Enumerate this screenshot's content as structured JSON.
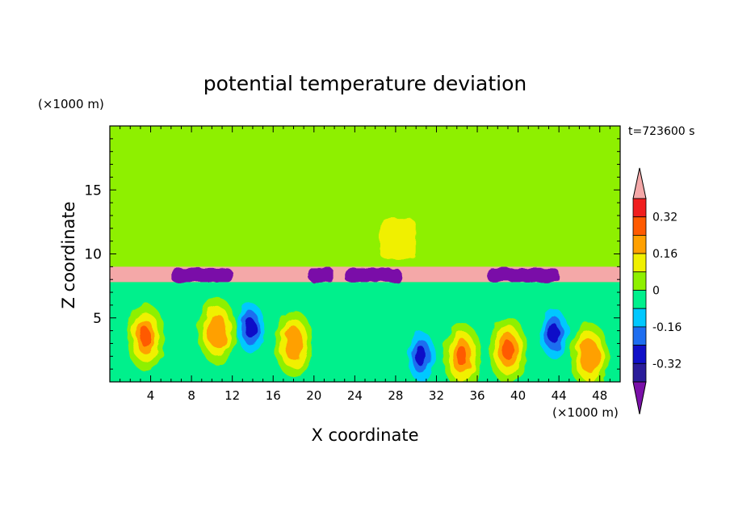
{
  "chart_data": {
    "type": "heatmap",
    "title": "potential temperature deviation",
    "xlabel": "X coordinate",
    "ylabel": "Z coordinate",
    "x_unit": "(×1000 m)",
    "y_unit": "(×1000 m)",
    "time_label": "t=723600 s",
    "xlim": [
      0,
      50
    ],
    "ylim": [
      0,
      20
    ],
    "xticks": [
      4,
      8,
      12,
      16,
      20,
      24,
      28,
      32,
      36,
      40,
      44,
      48
    ],
    "yticks": [
      5,
      10,
      15
    ],
    "colorbar": {
      "levels": [
        -0.4,
        -0.32,
        -0.24,
        -0.16,
        -0.08,
        0,
        0.08,
        0.16,
        0.24,
        0.32,
        0.4
      ],
      "labeled_ticks": [
        0.32,
        0.16,
        0,
        -0.16,
        -0.32
      ],
      "colors": [
        "#7a10a8",
        "#2a1c9a",
        "#1010c8",
        "#1e6ef0",
        "#00c8ff",
        "#00f08c",
        "#8ef000",
        "#f0f000",
        "#ffa000",
        "#ff5a00",
        "#f01e1e",
        "#f4a8a8"
      ]
    },
    "fields": {
      "upper_region_value": 0.0,
      "inversion_layer": {
        "z_bottom": 7.8,
        "z_top": 9.0,
        "value": 0.45
      },
      "dark_bands_along_layer": [
        [
          6,
          12,
          -0.45
        ],
        [
          19.5,
          22,
          -0.45
        ],
        [
          23,
          28.5,
          -0.45
        ],
        [
          37,
          44,
          -0.45
        ]
      ],
      "warm_plume_upper": [
        [
          16,
          38.5,
          0.06
        ]
      ],
      "warm_core_upper": {
        "x": [
          26.5,
          30
        ],
        "z": [
          9.5,
          12.8
        ],
        "value": 0.15
      },
      "lower_eddies": [
        {
          "x": 13.8,
          "z": 4.2,
          "value": -0.35
        },
        {
          "x": 30.5,
          "z": 2.0,
          "value": -0.3
        },
        {
          "x": 43.5,
          "z": 3.8,
          "value": -0.35
        },
        {
          "x": 3.5,
          "z": 3.5,
          "value": 0.3
        },
        {
          "x": 10.5,
          "z": 4.0,
          "value": 0.25
        },
        {
          "x": 18,
          "z": 3.0,
          "value": 0.25
        },
        {
          "x": 34.5,
          "z": 2.0,
          "value": 0.35
        },
        {
          "x": 39,
          "z": 2.5,
          "value": 0.3
        },
        {
          "x": 47,
          "z": 2.0,
          "value": 0.25
        }
      ]
    }
  }
}
